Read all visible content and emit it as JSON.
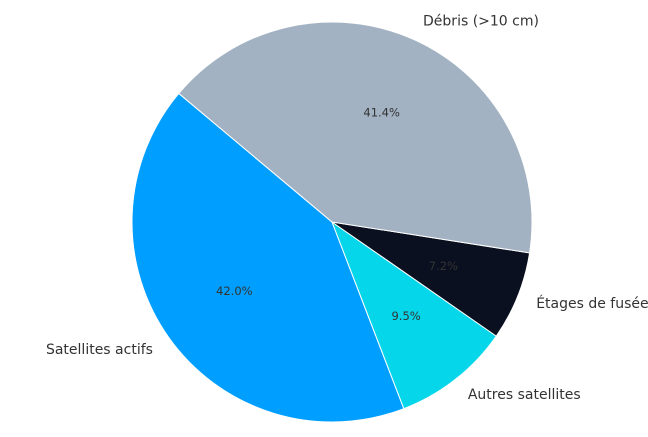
{
  "chart_data": {
    "type": "pie",
    "categories": [
      "Satellites actifs",
      "Autres satellites",
      "Étages de fusée",
      "Débris (>10 cm)"
    ],
    "values": [
      42.0,
      9.5,
      7.2,
      41.4
    ],
    "value_labels": [
      "42.0%",
      "9.5%",
      "7.2%",
      "41.4%"
    ],
    "colors": [
      "#009fff",
      "#06d6e9",
      "#0b1020",
      "#a3b2c3"
    ],
    "start_angle": 140
  }
}
